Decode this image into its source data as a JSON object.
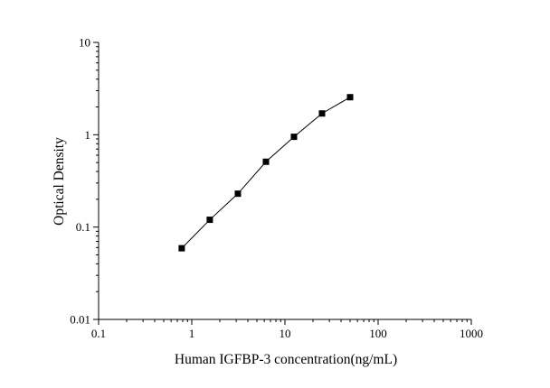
{
  "chart_data": {
    "type": "scatter",
    "title": "",
    "xlabel": "Human IGFBP-3 concentration(ng/mL)",
    "ylabel": "Optical Density",
    "x_scale": "log",
    "y_scale": "log",
    "xlim": [
      0.1,
      1000
    ],
    "ylim": [
      0.01,
      10
    ],
    "x_ticks": [
      0.1,
      1,
      10,
      100,
      1000
    ],
    "x_tick_labels": [
      "0.1",
      "1",
      "10",
      "100",
      "1000"
    ],
    "y_ticks": [
      0.01,
      0.1,
      1,
      10
    ],
    "y_tick_labels": [
      "0.01",
      "0.1",
      "1",
      "10"
    ],
    "grid": false,
    "legend": "none",
    "series": [
      {
        "marker": "square",
        "line": "connected",
        "color": "#000000",
        "points": [
          {
            "x": 0.78,
            "y": 0.059
          },
          {
            "x": 1.56,
            "y": 0.12
          },
          {
            "x": 3.125,
            "y": 0.23
          },
          {
            "x": 6.25,
            "y": 0.51
          },
          {
            "x": 12.5,
            "y": 0.95
          },
          {
            "x": 25,
            "y": 1.7
          },
          {
            "x": 50,
            "y": 2.55
          }
        ]
      }
    ]
  }
}
